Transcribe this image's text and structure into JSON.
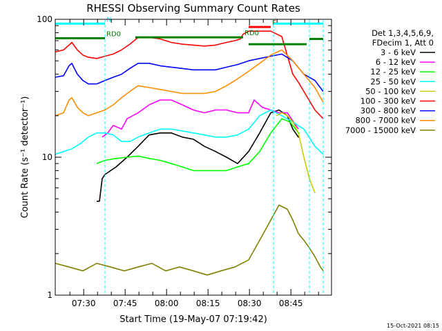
{
  "chart_data": {
    "type": "line",
    "title": "RHESSI Observing Summary Count Rates",
    "xlabel": "Start Time (19-May-07 07:19:42)",
    "ylabel": "Count Rate (s⁻¹ detector⁻¹)",
    "x_unit": "minutes after 07:19:42",
    "xlim": [
      0,
      100
    ],
    "ylim": [
      1,
      100
    ],
    "yscale": "log",
    "x_ticks": [
      {
        "label": "07:30",
        "x": 10.3
      },
      {
        "label": "07:45",
        "x": 25.3
      },
      {
        "label": "08:00",
        "x": 40.3
      },
      {
        "label": "08:15",
        "x": 55.3
      },
      {
        "label": "08:30",
        "x": 70.3
      },
      {
        "label": "08:45",
        "x": 85.3
      }
    ],
    "y_ticks": [
      {
        "label": "1",
        "y": 1
      },
      {
        "label": "10",
        "y": 10
      },
      {
        "label": "100",
        "y": 100
      }
    ],
    "legend_header": [
      "Det 1,3,4,5,6,9,",
      "FDecim 1, Att 0"
    ],
    "legend_position": "right",
    "series": [
      {
        "name": "3 - 6 keV",
        "color": "#000000",
        "x": [
          15,
          16,
          17,
          18,
          22,
          26,
          30,
          34,
          38,
          42,
          46,
          50,
          54,
          58,
          62,
          66,
          70,
          74,
          78,
          81,
          84,
          86,
          88,
          88.5
        ],
        "y": [
          4.8,
          4.8,
          7,
          7.5,
          8.5,
          10,
          12,
          14.5,
          15,
          15,
          14,
          13.5,
          12,
          11,
          10,
          9,
          11,
          15,
          21,
          22,
          20,
          16,
          14,
          14
        ]
      },
      {
        "name": "6 - 12 keV",
        "color": "#ff00ff",
        "x": [
          17,
          19,
          21,
          24,
          26,
          30,
          34,
          38,
          42,
          46,
          50,
          54,
          58,
          62,
          66,
          70,
          72,
          75,
          78,
          81,
          84,
          88
        ],
        "y": [
          14,
          15,
          17,
          16,
          19,
          21,
          24,
          26,
          26,
          24,
          22,
          21,
          22,
          22,
          21,
          21,
          26,
          23,
          22,
          21,
          21,
          16
        ]
      },
      {
        "name": "12 - 25 keV",
        "color": "#00ff00",
        "x": [
          15,
          18,
          22,
          26,
          30,
          34,
          38,
          42,
          46,
          50,
          54,
          58,
          62,
          66,
          70,
          74,
          78,
          82,
          85,
          88,
          88.5
        ],
        "y": [
          9,
          9.5,
          9.8,
          10,
          10.2,
          9.8,
          9.5,
          9,
          8.5,
          8,
          8,
          8,
          8,
          8.5,
          9,
          11,
          15,
          19,
          18,
          15,
          15
        ]
      },
      {
        "name": "25 - 50 keV",
        "color": "#00ffff",
        "x": [
          0,
          3,
          6,
          9,
          12,
          15,
          18,
          21,
          24,
          27,
          30,
          34,
          38,
          42,
          46,
          50,
          54,
          58,
          62,
          66,
          70,
          74,
          78,
          82,
          86,
          90,
          94,
          97
        ],
        "y": [
          10.5,
          11,
          11.5,
          12.5,
          14,
          15,
          15,
          14.5,
          13,
          13,
          14,
          15,
          16,
          16,
          15.5,
          15,
          14.5,
          14,
          14,
          14.5,
          16,
          20,
          22,
          20,
          18,
          16,
          12,
          10.5
        ]
      },
      {
        "name": "50 - 100 keV",
        "color": "#cccc00",
        "x": [
          80,
          82,
          84,
          86,
          88,
          90,
          92,
          94
        ],
        "y": [
          20,
          21,
          20,
          18,
          15,
          10,
          7,
          5.5
        ]
      },
      {
        "name": "100 - 300 keV",
        "color": "#ff0000",
        "x": [
          0,
          3,
          5,
          6,
          8,
          10,
          12,
          15,
          18,
          21,
          24,
          27,
          30,
          34,
          38,
          42,
          46,
          50,
          54,
          58,
          62,
          65,
          67,
          68,
          70,
          74,
          78,
          82,
          86,
          88,
          90,
          94,
          97
        ],
        "y": [
          58,
          60,
          65,
          68,
          60,
          55,
          53,
          52,
          54,
          56,
          60,
          66,
          74,
          74,
          72,
          68,
          66,
          65,
          64,
          65,
          68,
          70,
          72,
          78,
          82,
          82,
          82,
          75,
          40,
          35,
          30,
          22,
          19
        ]
      },
      {
        "name": "300 - 800 keV",
        "color": "#0000ff",
        "x": [
          0,
          3,
          5,
          6,
          8,
          10,
          12,
          15,
          18,
          21,
          24,
          27,
          30,
          34,
          38,
          42,
          46,
          50,
          54,
          58,
          62,
          66,
          70,
          74,
          78,
          82,
          86,
          90,
          94,
          97
        ],
        "y": [
          38,
          39,
          46,
          48,
          40,
          36,
          34,
          34,
          36,
          38,
          40,
          44,
          48,
          48,
          46,
          45,
          44,
          43,
          43,
          43,
          45,
          47,
          50,
          52,
          54,
          56,
          50,
          40,
          36,
          30
        ]
      },
      {
        "name": "800 - 7000 keV",
        "color": "#ff8c00",
        "x": [
          0,
          3,
          5,
          6,
          8,
          10,
          12,
          15,
          18,
          21,
          24,
          27,
          30,
          34,
          38,
          42,
          46,
          50,
          54,
          58,
          62,
          66,
          70,
          74,
          78,
          82,
          86,
          90,
          94,
          97
        ],
        "y": [
          20,
          21,
          26,
          27,
          23,
          21,
          20,
          21,
          22,
          24,
          27,
          30,
          33,
          32,
          31,
          30,
          29,
          29,
          29,
          30,
          33,
          37,
          42,
          48,
          55,
          60,
          50,
          40,
          32,
          25
        ]
      },
      {
        "name": "7000 - 15000 keV",
        "color": "#808000",
        "x": [
          0,
          5,
          10,
          15,
          20,
          25,
          30,
          35,
          40,
          45,
          50,
          55,
          60,
          65,
          70,
          74,
          78,
          81,
          84,
          86,
          88,
          90,
          92,
          94,
          96,
          97
        ],
        "y": [
          1.7,
          1.6,
          1.5,
          1.7,
          1.6,
          1.5,
          1.6,
          1.7,
          1.5,
          1.6,
          1.5,
          1.4,
          1.5,
          1.6,
          1.8,
          2.5,
          3.5,
          4.5,
          4.2,
          3.5,
          2.8,
          2.5,
          2.2,
          1.9,
          1.6,
          1.5
        ]
      }
    ],
    "annotations": [
      {
        "label": "N",
        "color": "#00ffff",
        "x1": 0,
        "x2": 18,
        "y": 93
      },
      {
        "label": "F",
        "color": "#ff0000",
        "x1": 70,
        "x2": 78,
        "y": 88
      },
      {
        "label": "RD0",
        "color": "#008000",
        "x1": 0,
        "x2": 18,
        "y": 73
      },
      {
        "label": "RD0",
        "color": "#008000",
        "x1": 29,
        "x2": 68,
        "y": 74
      },
      {
        "label": "",
        "color": "#008000",
        "x1": 70,
        "x2": 91,
        "y": 66
      },
      {
        "label": "",
        "color": "#008000",
        "x1": 92,
        "x2": 97,
        "y": 72
      },
      {
        "label": "",
        "color": "#00ffff",
        "x1": 79,
        "x2": 97,
        "y": 93
      }
    ],
    "markers": [
      {
        "color": "#00ffff",
        "x": 18
      },
      {
        "color": "#00ffff",
        "x": 79
      },
      {
        "color": "#00ffff",
        "x": 92
      },
      {
        "color": "#00ffff",
        "x": 97
      }
    ],
    "grid": false
  },
  "footer": {
    "generated": "15-Oct-2021 08:15"
  }
}
